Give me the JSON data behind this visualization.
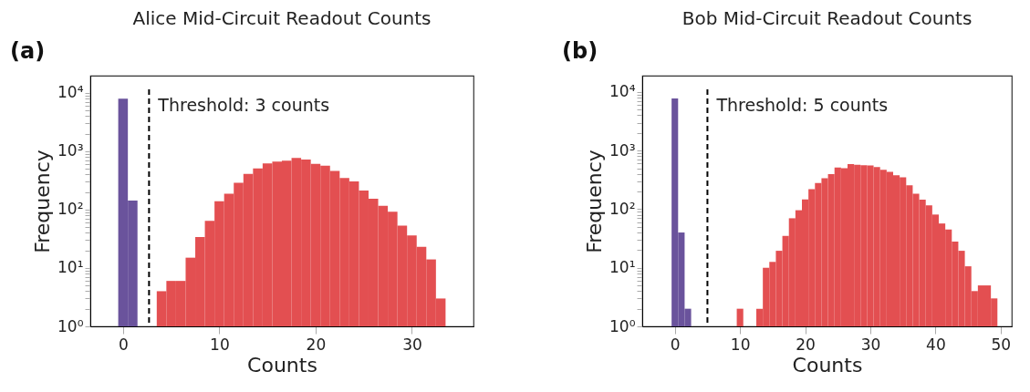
{
  "chart_data": [
    {
      "type": "histogram",
      "title": "Alice Mid-Circuit Readout Counts",
      "xlabel": "Counts",
      "ylabel": "Frequency",
      "log": "y",
      "grid": false,
      "annotations": [
        "(a)"
      ],
      "bins": [
        -0.5,
        0.5,
        1.5,
        2.5,
        3.5,
        4.5,
        5.5,
        6.5,
        7.5,
        8.5,
        9.5,
        10.5,
        11.5,
        12.5,
        13.5,
        14.5,
        15.5,
        16.5,
        17.5,
        18.5,
        19.5,
        20.5,
        21.5,
        22.5,
        23.5,
        24.5,
        25.5,
        26.5,
        27.5,
        28.5,
        29.5,
        30.5,
        31.5,
        32.5,
        33.5
      ],
      "values": [
        7900,
        143,
        null,
        null,
        4,
        6,
        6,
        15,
        34,
        64,
        139,
        186,
        288,
        407,
        506,
        617,
        665,
        687,
        766,
        718,
        603,
        565,
        459,
        346,
        304,
        212,
        153,
        116,
        92,
        53,
        36,
        23,
        14,
        3
      ],
      "colors": [
        "#6a539c",
        "#6a539c",
        null,
        null,
        "#e34f51",
        "#e34f51",
        "#e34f51",
        "#e34f51",
        "#e34f51",
        "#e34f51",
        "#e34f51",
        "#e34f51",
        "#e34f51",
        "#e34f51",
        "#e34f51",
        "#e34f51",
        "#e34f51",
        "#e34f51",
        "#e34f51",
        "#e34f51",
        "#e34f51",
        "#e34f51",
        "#e34f51",
        "#e34f51",
        "#e34f51",
        "#e34f51",
        "#e34f51",
        "#e34f51",
        "#e34f51",
        "#e34f51",
        "#e34f51",
        "#e34f51",
        "#e34f51",
        "#e34f51"
      ],
      "xlim": [
        -3.4,
        36.4
      ],
      "xticks": [
        0,
        10,
        20,
        30
      ],
      "ylim": [
        1,
        19600
      ],
      "yticks": [
        {
          "value": 1,
          "label": "10⁰"
        },
        {
          "value": 2,
          "label": null
        },
        {
          "value": 3,
          "label": null
        },
        {
          "value": 4,
          "label": null
        },
        {
          "value": 5,
          "label": null
        },
        {
          "value": 6,
          "label": null
        },
        {
          "value": 7,
          "label": null
        },
        {
          "value": 8,
          "label": null
        },
        {
          "value": 9,
          "label": null
        },
        {
          "value": 10,
          "label": "10¹"
        },
        {
          "value": 20,
          "label": null
        },
        {
          "value": 30,
          "label": null
        },
        {
          "value": 40,
          "label": null
        },
        {
          "value": 50,
          "label": null
        },
        {
          "value": 60,
          "label": null
        },
        {
          "value": 70,
          "label": null
        },
        {
          "value": 80,
          "label": null
        },
        {
          "value": 90,
          "label": null
        },
        {
          "value": 100,
          "label": "10²"
        },
        {
          "value": 200,
          "label": null
        },
        {
          "value": 300,
          "label": null
        },
        {
          "value": 400,
          "label": null
        },
        {
          "value": 500,
          "label": null
        },
        {
          "value": 600,
          "label": null
        },
        {
          "value": 700,
          "label": null
        },
        {
          "value": 800,
          "label": null
        },
        {
          "value": 900,
          "label": null
        },
        {
          "value": 1000,
          "label": "10³"
        },
        {
          "value": 2000,
          "label": null
        },
        {
          "value": 3000,
          "label": null
        },
        {
          "value": 4000,
          "label": null
        },
        {
          "value": 5000,
          "label": null
        },
        {
          "value": 6000,
          "label": null
        },
        {
          "value": 7000,
          "label": null
        },
        {
          "value": 8000,
          "label": null
        },
        {
          "value": 9000,
          "label": null
        },
        {
          "value": 10000,
          "label": "10⁴"
        }
      ],
      "ref_lines": [
        {
          "axis": "x",
          "value": 2.7,
          "label": "Threshold: 3 counts",
          "color": "#000000",
          "line_style": "dashed"
        }
      ]
    },
    {
      "type": "histogram",
      "title": "Bob Mid-Circuit Readout Counts",
      "xlabel": "Counts",
      "ylabel": "Frequency",
      "log": "y",
      "grid": false,
      "annotations": [
        "(b)"
      ],
      "bins": [
        -0.5,
        0.5,
        1.5,
        2.5,
        3.5,
        4.5,
        5.5,
        6.5,
        7.5,
        8.5,
        9.5,
        10.5,
        11.5,
        12.5,
        13.5,
        14.5,
        15.5,
        16.5,
        17.5,
        18.5,
        19.5,
        20.5,
        21.5,
        22.5,
        23.5,
        24.5,
        25.5,
        26.5,
        27.5,
        28.5,
        29.5,
        30.5,
        31.5,
        32.5,
        33.5,
        34.5,
        35.5,
        36.5,
        37.5,
        38.5,
        39.5,
        40.5,
        41.5,
        42.5,
        43.5,
        44.5,
        45.5,
        46.5,
        47.5,
        48.5,
        49.5
      ],
      "values": [
        7780,
        40,
        2,
        null,
        null,
        null,
        null,
        null,
        null,
        null,
        2,
        null,
        null,
        2,
        10,
        12.6,
        19.5,
        35,
        70,
        96,
        147,
        219,
        279,
        339,
        396,
        514,
        502,
        586,
        573,
        561,
        555,
        525,
        471,
        432,
        379,
        351,
        256,
        184,
        145,
        116,
        81,
        57,
        45,
        28,
        19.5,
        10.6,
        4,
        5,
        5,
        3
      ],
      "colors": [
        "#6a539c",
        "#6a539c",
        "#6a539c",
        null,
        null,
        null,
        null,
        null,
        null,
        null,
        "#e34f51",
        null,
        null,
        "#e34f51",
        "#e34f51",
        "#e34f51",
        "#e34f51",
        "#e34f51",
        "#e34f51",
        "#e34f51",
        "#e34f51",
        "#e34f51",
        "#e34f51",
        "#e34f51",
        "#e34f51",
        "#e34f51",
        "#e34f51",
        "#e34f51",
        "#e34f51",
        "#e34f51",
        "#e34f51",
        "#e34f51",
        "#e34f51",
        "#e34f51",
        "#e34f51",
        "#e34f51",
        "#e34f51",
        "#e34f51",
        "#e34f51",
        "#e34f51",
        "#e34f51",
        "#e34f51",
        "#e34f51",
        "#e34f51",
        "#e34f51",
        "#e34f51",
        "#e34f51",
        "#e34f51",
        "#e34f51",
        "#e34f51"
      ],
      "xlim": [
        -5,
        51.7
      ],
      "xticks": [
        0,
        10,
        20,
        30,
        40,
        50
      ],
      "ylim": [
        1,
        19000
      ],
      "yticks": [
        {
          "value": 1,
          "label": "10⁰"
        },
        {
          "value": 2,
          "label": null
        },
        {
          "value": 3,
          "label": null
        },
        {
          "value": 4,
          "label": null
        },
        {
          "value": 5,
          "label": null
        },
        {
          "value": 6,
          "label": null
        },
        {
          "value": 7,
          "label": null
        },
        {
          "value": 8,
          "label": null
        },
        {
          "value": 9,
          "label": null
        },
        {
          "value": 10,
          "label": "10¹"
        },
        {
          "value": 20,
          "label": null
        },
        {
          "value": 30,
          "label": null
        },
        {
          "value": 40,
          "label": null
        },
        {
          "value": 50,
          "label": null
        },
        {
          "value": 60,
          "label": null
        },
        {
          "value": 70,
          "label": null
        },
        {
          "value": 80,
          "label": null
        },
        {
          "value": 90,
          "label": null
        },
        {
          "value": 100,
          "label": "10²"
        },
        {
          "value": 200,
          "label": null
        },
        {
          "value": 300,
          "label": null
        },
        {
          "value": 400,
          "label": null
        },
        {
          "value": 500,
          "label": null
        },
        {
          "value": 600,
          "label": null
        },
        {
          "value": 700,
          "label": null
        },
        {
          "value": 800,
          "label": null
        },
        {
          "value": 900,
          "label": null
        },
        {
          "value": 1000,
          "label": "10³"
        },
        {
          "value": 2000,
          "label": null
        },
        {
          "value": 3000,
          "label": null
        },
        {
          "value": 4000,
          "label": null
        },
        {
          "value": 5000,
          "label": null
        },
        {
          "value": 6000,
          "label": null
        },
        {
          "value": 7000,
          "label": null
        },
        {
          "value": 8000,
          "label": null
        },
        {
          "value": 9000,
          "label": null
        },
        {
          "value": 10000,
          "label": "10⁴"
        }
      ],
      "ref_lines": [
        {
          "axis": "x",
          "value": 5,
          "label": "Threshold: 5 counts",
          "color": "#000000",
          "line_style": "dashed"
        }
      ]
    }
  ]
}
